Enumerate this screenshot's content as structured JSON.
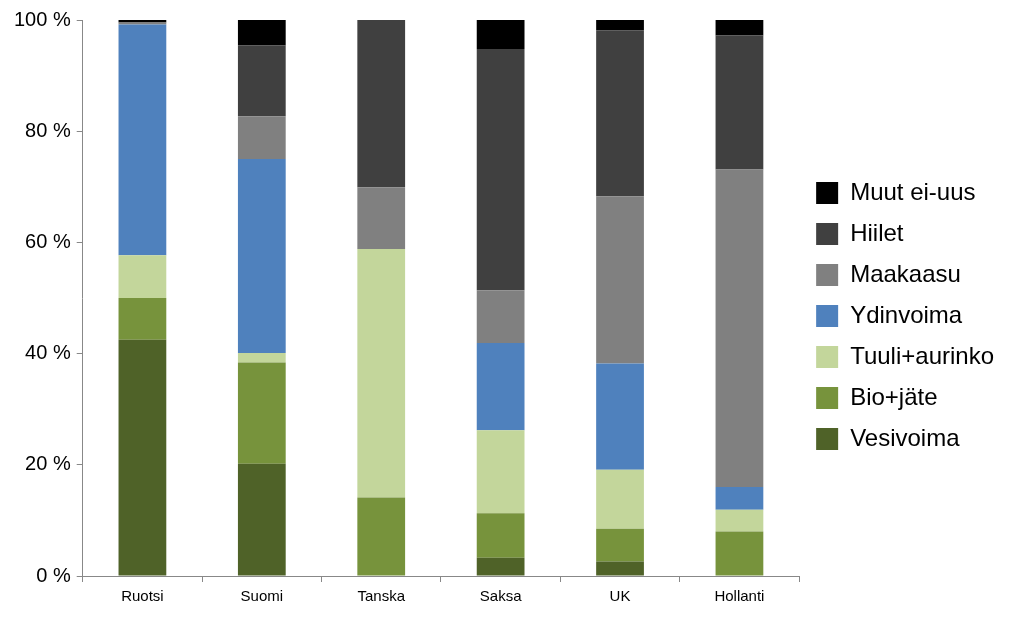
{
  "chart_data": {
    "type": "bar",
    "stacked": true,
    "grid": false,
    "legend": "right",
    "categories": [
      "Ruotsi",
      "Suomi",
      "Tanska",
      "Saksa",
      "UK",
      "Hollanti"
    ],
    "series": [
      {
        "name": "Vesivoima",
        "color": "#4f6228",
        "values": [
          42.5,
          20.2,
          0,
          3.3,
          2.6,
          0
        ]
      },
      {
        "name": "Bio+jäte",
        "color": "#77933c",
        "values": [
          7.5,
          18.2,
          14.1,
          8.0,
          5.9,
          8.0
        ]
      },
      {
        "name": "Tuuli+aurinko",
        "color": "#c3d69b",
        "values": [
          7.7,
          1.7,
          44.7,
          14.9,
          10.6,
          3.9
        ]
      },
      {
        "name": "Ydinvoima",
        "color": "#4f81bd",
        "values": [
          41.5,
          34.9,
          0,
          15.7,
          19.1,
          4.1
        ]
      },
      {
        "name": "Maakaasu",
        "color": "#808080",
        "values": [
          0.3,
          7.7,
          11.1,
          9.5,
          30.1,
          57.1
        ]
      },
      {
        "name": "Hiilet",
        "color": "#404040",
        "values": [
          0.1,
          12.7,
          30.1,
          43.4,
          29.8,
          24.1
        ]
      },
      {
        "name": "Muut ei-uus",
        "color": "#000000",
        "values": [
          0.4,
          4.6,
          0,
          5.2,
          1.9,
          2.8
        ]
      }
    ],
    "ylim": [
      0,
      100
    ],
    "yticks": [
      {
        "value": 0,
        "label": "0 %"
      },
      {
        "value": 20,
        "label": "20 %"
      },
      {
        "value": 40,
        "label": "40 %"
      },
      {
        "value": 60,
        "label": "60 %"
      },
      {
        "value": 80,
        "label": "80 %"
      },
      {
        "value": 100,
        "label": "100 %"
      }
    ]
  }
}
